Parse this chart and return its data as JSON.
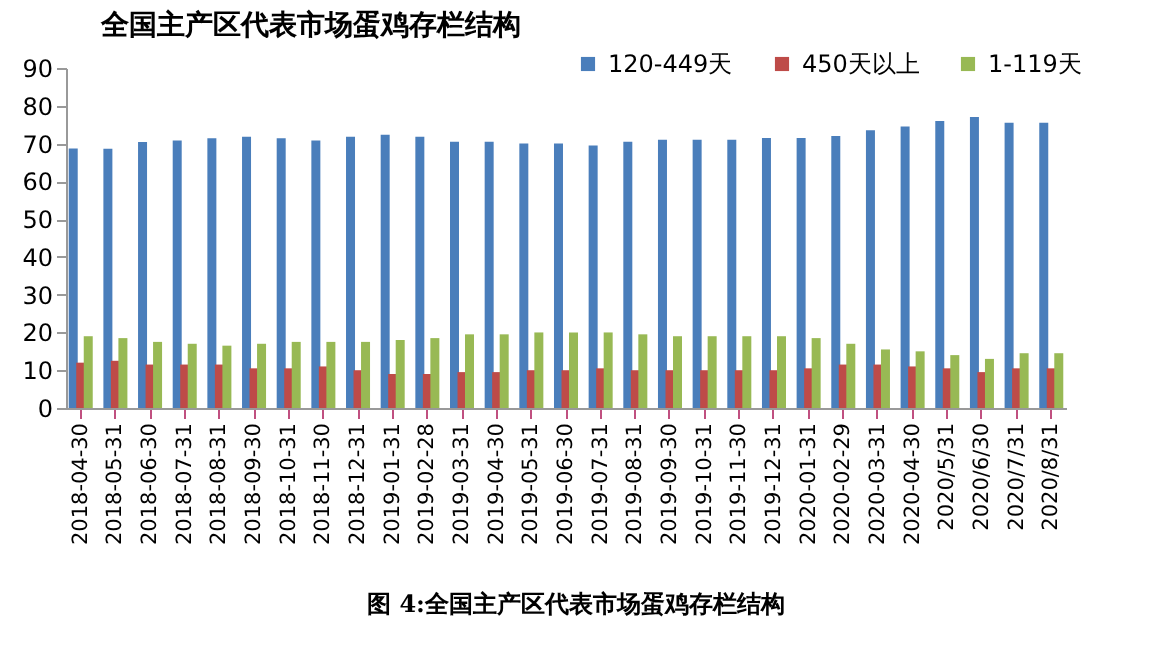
{
  "chart_data": {
    "type": "bar",
    "title": "全国主产区代表市场蛋鸡存栏结构",
    "categories": [
      "2018-04-30",
      "2018-05-31",
      "2018-06-30",
      "2018-07-31",
      "2018-08-31",
      "2018-09-30",
      "2018-10-31",
      "2018-11-30",
      "2018-12-31",
      "2019-01-31",
      "2019-02-28",
      "2019-03-31",
      "2019-04-30",
      "2019-05-31",
      "2019-06-30",
      "2019-07-31",
      "2019-08-31",
      "2019-09-30",
      "2019-10-31",
      "2019-11-30",
      "2019-12-31",
      "2020-01-31",
      "2020-02-29",
      "2020-03-31",
      "2020-04-30",
      "2020/5/31",
      "2020/6/30",
      "2020/7/31",
      "2020/8/31"
    ],
    "series": [
      {
        "name": "120-449天",
        "color": "#4a7ebb",
        "values": [
          68.7,
          68.6,
          70.4,
          70.8,
          71.4,
          71.8,
          71.4,
          70.8,
          71.8,
          72.3,
          71.8,
          70.5,
          70.5,
          70,
          70,
          69.5,
          70.5,
          71,
          71,
          71,
          71.5,
          71.5,
          72,
          73.5,
          74.5,
          76,
          77,
          75.5,
          75.5
        ]
      },
      {
        "name": "450天以上",
        "color": "#be4b48",
        "values": [
          12,
          12.5,
          11.5,
          11.5,
          11.5,
          10.5,
          10.5,
          11,
          10,
          9,
          9,
          9.5,
          9.5,
          10,
          10,
          10.5,
          10,
          10,
          10,
          10,
          10,
          10.5,
          11.5,
          11.5,
          11,
          10.5,
          9.5,
          10.5,
          10.5
        ]
      },
      {
        "name": "1-119天",
        "color": "#98b954",
        "values": [
          19,
          18.5,
          17.5,
          17,
          16.5,
          17,
          17.5,
          17.5,
          17.5,
          18,
          18.5,
          19.5,
          19.5,
          20,
          20,
          20,
          19.5,
          19,
          19,
          19,
          19,
          18.5,
          17,
          15.5,
          15,
          14,
          13,
          14.5,
          14.5
        ]
      }
    ],
    "ylim": [
      0,
      90
    ],
    "yticks": [
      0,
      10,
      20,
      30,
      40,
      50,
      60,
      70,
      80,
      90
    ],
    "legend": "top right",
    "annotations": [
      "图 4:全国主产区代表市场蛋鸡存栏结构"
    ]
  }
}
